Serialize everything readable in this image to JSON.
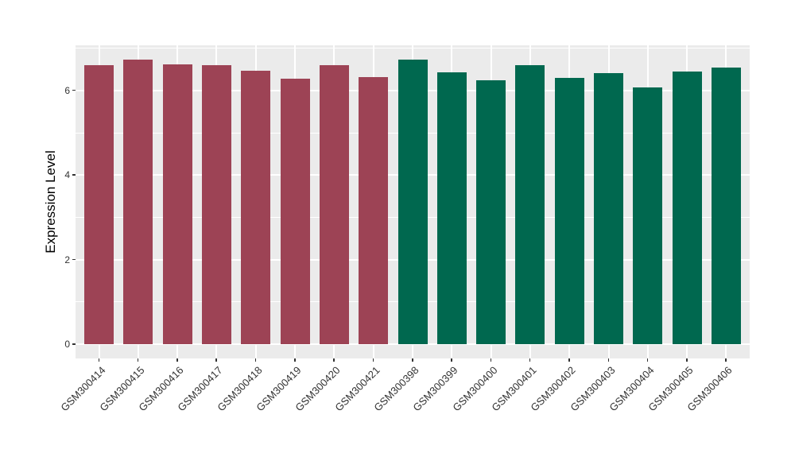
{
  "chart_data": {
    "type": "bar",
    "title": "",
    "xlabel": "",
    "ylabel": "Expression Level",
    "categories": [
      "GSM300414",
      "GSM300415",
      "GSM300416",
      "GSM300417",
      "GSM300418",
      "GSM300419",
      "GSM300420",
      "GSM300421",
      "GSM300398",
      "GSM300399",
      "GSM300400",
      "GSM300401",
      "GSM300402",
      "GSM300403",
      "GSM300404",
      "GSM300405",
      "GSM300406"
    ],
    "values": [
      6.6,
      6.73,
      6.62,
      6.59,
      6.46,
      6.27,
      6.6,
      6.32,
      6.73,
      6.42,
      6.24,
      6.59,
      6.29,
      6.41,
      6.07,
      6.44,
      6.55
    ],
    "bar_groups": [
      "group1",
      "group1",
      "group1",
      "group1",
      "group1",
      "group1",
      "group1",
      "group1",
      "group2",
      "group2",
      "group2",
      "group2",
      "group2",
      "group2",
      "group2",
      "group2",
      "group2"
    ],
    "yticks": [
      0,
      2,
      4,
      6
    ],
    "yminor": [
      1,
      3,
      5,
      7
    ],
    "ylim": [
      -0.36,
      7.07
    ],
    "grid": "major+minor",
    "legend_position": "none",
    "x_label_rotation": -45,
    "colors": {
      "figure_background": "#FFFFFF",
      "panel_background": "#EBEBEB",
      "grid": "#FFFFFF",
      "tick": "#333333",
      "axis_text": "#333333",
      "axis_title": "#000000",
      "group_fill": {
        "group1": "#9D4355",
        "group2": "#00684F"
      }
    }
  }
}
